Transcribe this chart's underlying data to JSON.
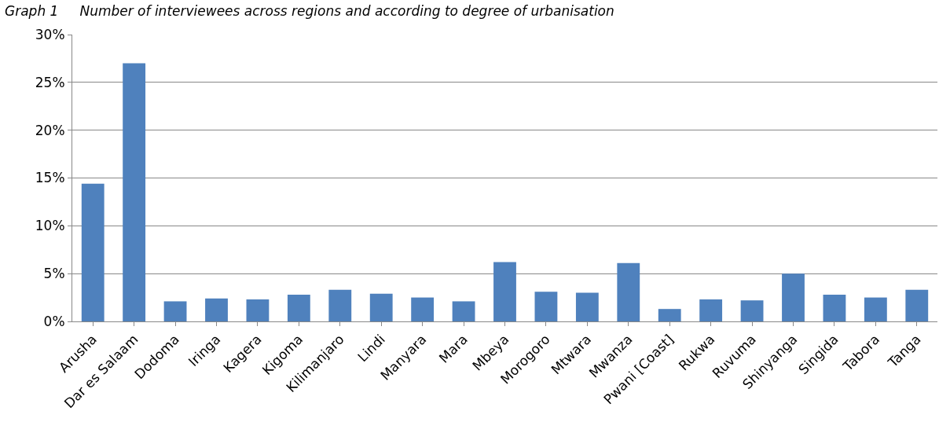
{
  "chart_data": {
    "type": "bar",
    "title": "Graph 1     Number of interviewees across regions and according to degree of urbanisation",
    "categories": [
      "Arusha",
      "Dar es Salaam",
      "Dodoma",
      "Iringa",
      "Kagera",
      "Kigoma",
      "Kilimanjaro",
      "Lindi",
      "Manyara",
      "Mara",
      "Mbeya",
      "Morogoro",
      "Mtwara",
      "Mwanza",
      "Pwani [Coast]",
      "Rukwa",
      "Ruvuma",
      "Shinyanga",
      "Singida",
      "Tabora",
      "Tanga"
    ],
    "values": [
      14.4,
      27.0,
      2.1,
      2.4,
      2.3,
      2.8,
      3.3,
      2.9,
      2.5,
      2.1,
      6.2,
      3.1,
      3.0,
      6.1,
      1.3,
      2.3,
      2.2,
      5.0,
      2.8,
      2.5,
      3.3
    ],
    "color": "#4f81bd",
    "ylim": [
      0,
      30
    ],
    "yticks": [
      {
        "value": 0,
        "label": "0%"
      },
      {
        "value": 5,
        "label": "5%"
      },
      {
        "value": 10,
        "label": "10%"
      },
      {
        "value": 15,
        "label": "15%"
      },
      {
        "value": 20,
        "label": "20%"
      },
      {
        "value": 25,
        "label": "25%"
      },
      {
        "value": 30,
        "label": "30%"
      }
    ],
    "grid": "y"
  }
}
